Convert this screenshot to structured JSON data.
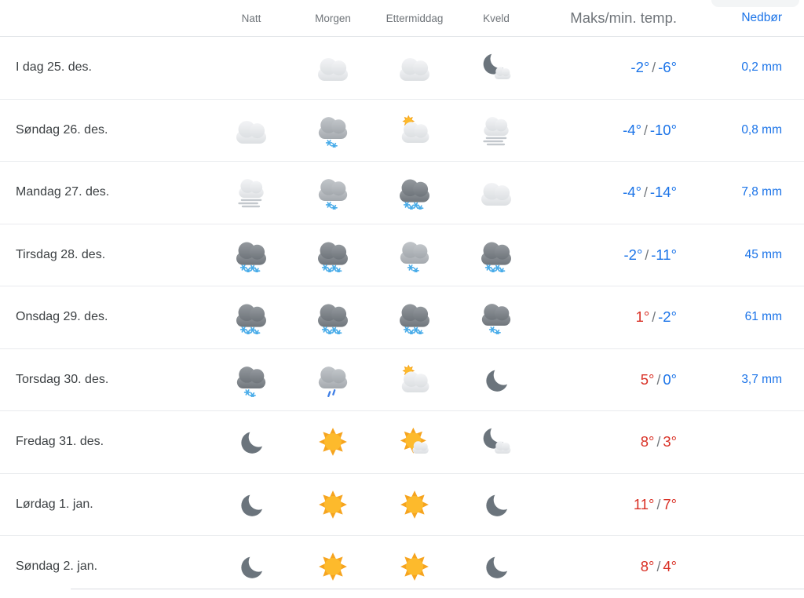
{
  "colors": {
    "cold": "#1a73e8",
    "warm": "#d93025",
    "slash": "#70757a",
    "precip": "#1a73e8"
  },
  "header": {
    "cols": [
      "Natt",
      "Morgen",
      "Ettermiddag",
      "Kveld",
      "Maks/min. temp.",
      "Nedbør"
    ]
  },
  "slash": "/",
  "rows": [
    {
      "day": "I dag 25. des.",
      "icons": [
        "none",
        "cloud",
        "cloud",
        "moon-cloud"
      ],
      "temp": {
        "max": "-2°",
        "max_kind": "cold",
        "min": "-6°",
        "min_kind": "cold"
      },
      "precip": "0,2 mm"
    },
    {
      "day": "Søndag 26. des.",
      "icons": [
        "cloud",
        "snow-light-med",
        "cloud-sun",
        "fog"
      ],
      "temp": {
        "max": "-4°",
        "max_kind": "cold",
        "min": "-10°",
        "min_kind": "cold"
      },
      "precip": "0,8 mm"
    },
    {
      "day": "Mandag 27. des.",
      "icons": [
        "fog",
        "snow-light-med",
        "snow-heavy-dark",
        "cloud"
      ],
      "temp": {
        "max": "-4°",
        "max_kind": "cold",
        "min": "-14°",
        "min_kind": "cold"
      },
      "precip": "7,8 mm"
    },
    {
      "day": "Tirsdag 28. des.",
      "icons": [
        "snow-heavy-dark",
        "snow-heavy-dark",
        "snow-light-med",
        "snow-heavy-dark"
      ],
      "temp": {
        "max": "-2°",
        "max_kind": "cold",
        "min": "-11°",
        "min_kind": "cold"
      },
      "precip": "45 mm"
    },
    {
      "day": "Onsdag 29. des.",
      "icons": [
        "snow-heavy-dark",
        "snow-heavy-dark",
        "snow-heavy-dark",
        "snow-light-dark"
      ],
      "temp": {
        "max": "1°",
        "max_kind": "warm",
        "min": "-2°",
        "min_kind": "cold"
      },
      "precip": "61 mm"
    },
    {
      "day": "Torsdag 30. des.",
      "icons": [
        "snow-light-dark",
        "rain-light",
        "cloud-sun",
        "moon"
      ],
      "temp": {
        "max": "5°",
        "max_kind": "warm",
        "min": "0°",
        "min_kind": "cold"
      },
      "precip": "3,7 mm"
    },
    {
      "day": "Fredag 31. des.",
      "icons": [
        "moon",
        "sun",
        "sun-cloud",
        "moon-cloud"
      ],
      "temp": {
        "max": "8°",
        "max_kind": "warm",
        "min": "3°",
        "min_kind": "warm"
      },
      "precip": ""
    },
    {
      "day": "Lørdag 1. jan.",
      "icons": [
        "moon",
        "sun",
        "sun",
        "moon"
      ],
      "temp": {
        "max": "11°",
        "max_kind": "warm",
        "min": "7°",
        "min_kind": "warm"
      },
      "precip": ""
    },
    {
      "day": "Søndag 2. jan.",
      "icons": [
        "moon",
        "sun",
        "sun",
        "moon"
      ],
      "temp": {
        "max": "8°",
        "max_kind": "warm",
        "min": "4°",
        "min_kind": "warm"
      },
      "precip": ""
    }
  ]
}
